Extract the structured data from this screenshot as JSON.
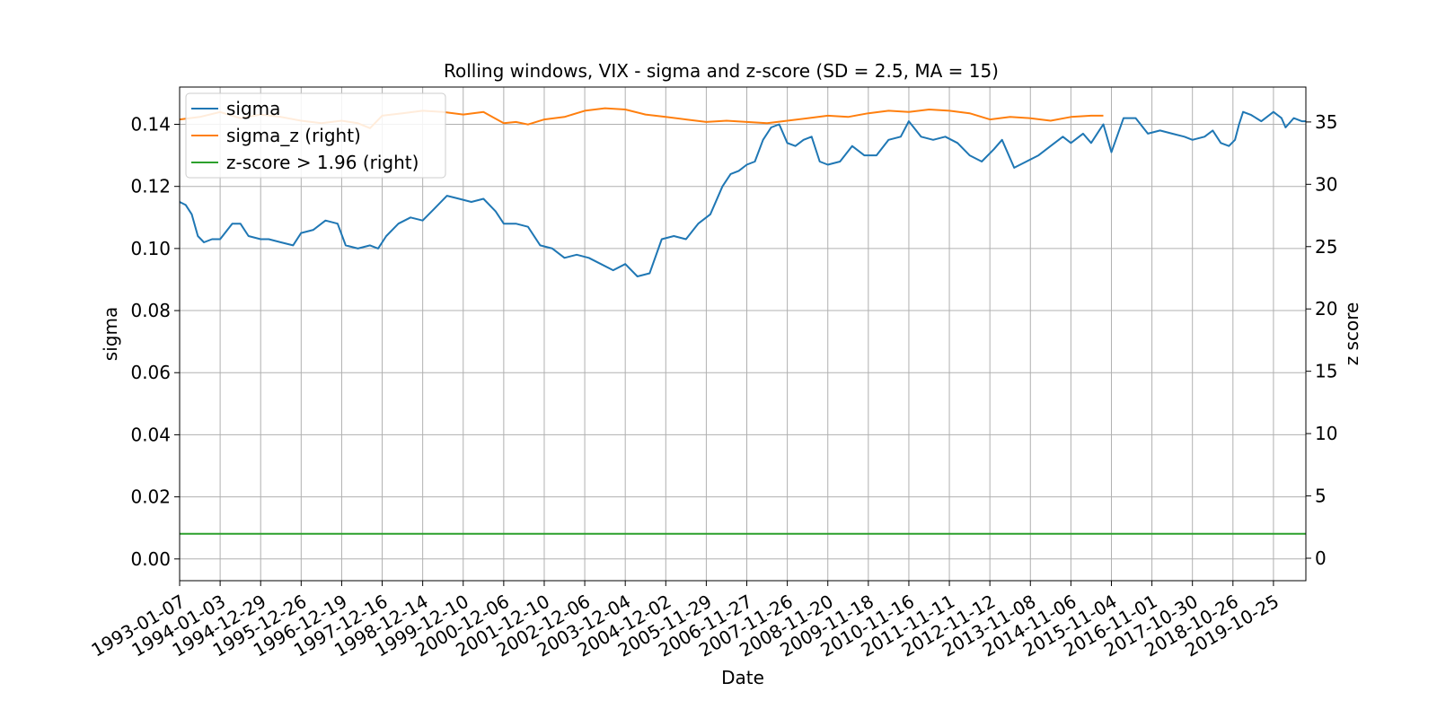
{
  "chart_data": {
    "type": "line",
    "title": "Rolling windows, VIX - sigma and z-score (SD = 2.5, MA = 15)",
    "xlabel": "Date",
    "ylabel": "sigma",
    "ylabel_right": "z score",
    "x_tick_labels": [
      "1993-01-07",
      "1994-01-03",
      "1994-12-29",
      "1995-12-26",
      "1996-12-19",
      "1997-12-16",
      "1998-12-14",
      "1999-12-10",
      "2000-12-06",
      "2001-12-10",
      "2002-12-06",
      "2003-12-04",
      "2004-12-02",
      "2005-11-29",
      "2006-11-27",
      "2007-11-26",
      "2008-11-20",
      "2009-11-18",
      "2010-11-16",
      "2011-11-11",
      "2012-11-12",
      "2013-11-08",
      "2014-11-06",
      "2015-11-04",
      "2016-11-01",
      "2017-10-30",
      "2018-10-26",
      "2019-10-25"
    ],
    "xlim_index": [
      0,
      27.8
    ],
    "ylim": [
      -0.007,
      0.152
    ],
    "ylim_right": [
      -1.8,
      37.8
    ],
    "yticks": [
      0.0,
      0.02,
      0.04,
      0.06,
      0.08,
      0.1,
      0.12,
      0.14
    ],
    "ytick_labels": [
      "0.00",
      "0.02",
      "0.04",
      "0.06",
      "0.08",
      "0.10",
      "0.12",
      "0.14"
    ],
    "yticks_right": [
      0,
      5,
      10,
      15,
      20,
      25,
      30,
      35
    ],
    "ytick_labels_right": [
      "0",
      "5",
      "10",
      "15",
      "20",
      "25",
      "30",
      "35"
    ],
    "grid": true,
    "legend_position": "upper-left",
    "colors": {
      "sigma": "#1f77b4",
      "sigma_z": "#ff7f0e",
      "zscore": "#2ca02c"
    },
    "series": [
      {
        "name": "sigma",
        "axis": "left",
        "x": [
          0,
          0.15,
          0.3,
          0.45,
          0.6,
          0.8,
          1,
          1.3,
          1.5,
          1.7,
          2,
          2.2,
          2.5,
          2.8,
          3,
          3.3,
          3.6,
          3.9,
          4.1,
          4.4,
          4.7,
          4.9,
          5.1,
          5.4,
          5.7,
          6,
          6.3,
          6.6,
          6.9,
          7.2,
          7.5,
          7.8,
          8,
          8.3,
          8.6,
          8.9,
          9.2,
          9.5,
          9.8,
          10.1,
          10.4,
          10.7,
          11,
          11.3,
          11.6,
          11.9,
          12.2,
          12.5,
          12.8,
          13.1,
          13.4,
          13.6,
          13.8,
          14,
          14.2,
          14.4,
          14.6,
          14.8,
          15,
          15.2,
          15.4,
          15.6,
          15.8,
          16,
          16.3,
          16.6,
          16.9,
          17.2,
          17.5,
          17.8,
          18,
          18.3,
          18.6,
          18.9,
          19.2,
          19.5,
          19.8,
          20.1,
          20.3,
          20.6,
          20.9,
          21.2,
          21.5,
          21.8,
          22,
          22.3,
          22.5,
          22.7,
          22.8,
          23,
          23.3,
          23.6,
          23.9,
          24.2,
          24.5,
          24.8,
          25,
          25.3,
          25.5,
          25.7,
          25.9,
          26.05,
          26.15,
          26.25,
          26.45,
          26.7,
          27,
          27.2,
          27.3,
          27.5,
          27.7,
          27.8
        ],
        "y": [
          0.115,
          0.114,
          0.111,
          0.104,
          0.102,
          0.103,
          0.103,
          0.108,
          0.108,
          0.104,
          0.103,
          0.103,
          0.102,
          0.101,
          0.105,
          0.106,
          0.109,
          0.108,
          0.101,
          0.1,
          0.101,
          0.1,
          0.104,
          0.108,
          0.11,
          0.109,
          0.113,
          0.117,
          0.116,
          0.115,
          0.116,
          0.112,
          0.108,
          0.108,
          0.107,
          0.101,
          0.1,
          0.097,
          0.098,
          0.097,
          0.095,
          0.093,
          0.095,
          0.091,
          0.092,
          0.103,
          0.104,
          0.103,
          0.108,
          0.111,
          0.12,
          0.124,
          0.125,
          0.127,
          0.128,
          0.135,
          0.139,
          0.14,
          0.134,
          0.133,
          0.135,
          0.136,
          0.128,
          0.127,
          0.128,
          0.133,
          0.13,
          0.13,
          0.135,
          0.136,
          0.141,
          0.136,
          0.135,
          0.136,
          0.134,
          0.13,
          0.128,
          0.132,
          0.135,
          0.126,
          0.128,
          0.13,
          0.133,
          0.136,
          0.134,
          0.137,
          0.134,
          0.138,
          0.14,
          0.131,
          0.142,
          0.142,
          0.137,
          0.138,
          0.137,
          0.136,
          0.135,
          0.136,
          0.138,
          0.134,
          0.133,
          0.135,
          0.14,
          0.144,
          0.143,
          0.141,
          0.144,
          0.142,
          0.139,
          0.142,
          0.141,
          0.141
        ]
      },
      {
        "name": "sigma_z (right)",
        "axis": "right",
        "x": [
          0,
          0.5,
          1,
          1.5,
          2,
          2.5,
          3,
          3.5,
          4,
          4.4,
          4.7,
          5,
          5.5,
          6,
          6.5,
          7,
          7.5,
          8,
          8.3,
          8.6,
          9,
          9.5,
          10,
          10.5,
          11,
          11.5,
          12,
          12.5,
          13,
          13.5,
          14,
          14.5,
          15,
          15.5,
          16,
          16.5,
          17,
          17.5,
          18,
          18.5,
          19,
          19.5,
          20,
          20.5,
          21,
          21.5,
          22,
          22.5,
          22.8
        ],
        "y": [
          35.2,
          35.4,
          35.8,
          35.3,
          35.6,
          35.4,
          35.1,
          34.9,
          35.1,
          34.9,
          34.5,
          35.5,
          35.7,
          35.9,
          35.8,
          35.6,
          35.8,
          34.9,
          35.0,
          34.8,
          35.2,
          35.4,
          35.9,
          36.1,
          36.0,
          35.6,
          35.4,
          35.2,
          35.0,
          35.1,
          35.0,
          34.9,
          35.1,
          35.3,
          35.5,
          35.4,
          35.7,
          35.9,
          35.8,
          36.0,
          35.9,
          35.7,
          35.2,
          35.4,
          35.3,
          35.1,
          35.4,
          35.5,
          35.5
        ]
      },
      {
        "name": "z-score > 1.96 (right)",
        "axis": "right",
        "x": [
          0,
          27.8
        ],
        "y": [
          1.96,
          1.96
        ]
      }
    ]
  }
}
